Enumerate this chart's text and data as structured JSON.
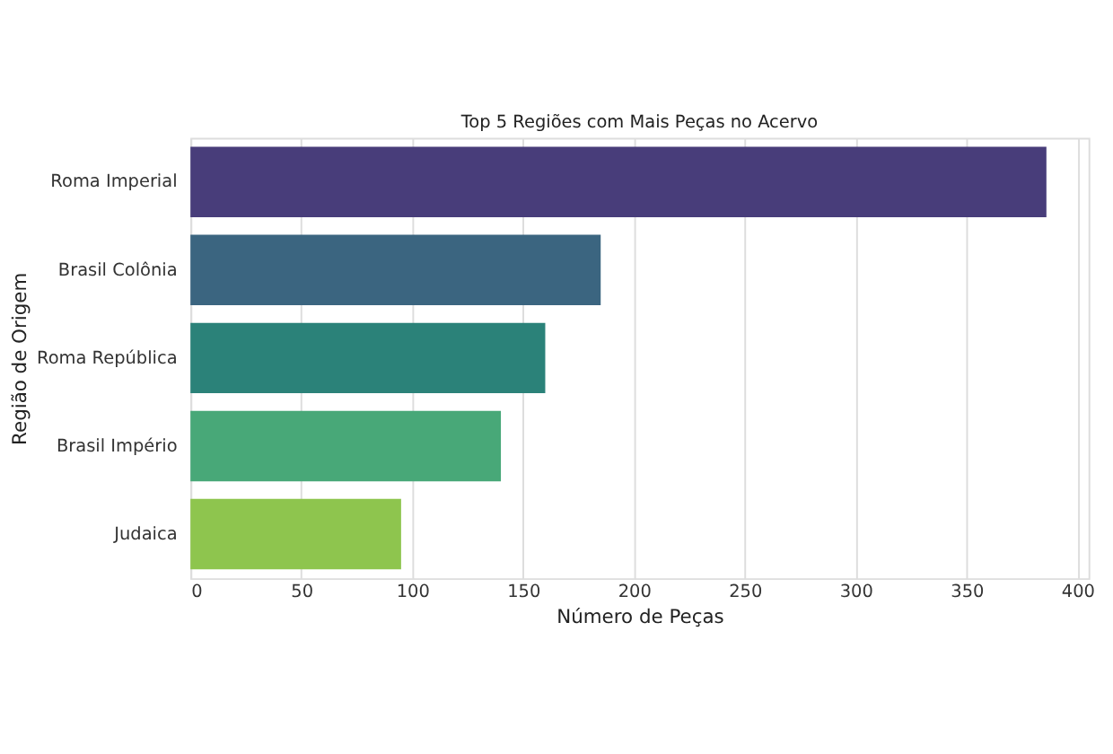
{
  "chart_data": {
    "type": "bar",
    "orientation": "horizontal",
    "title": "Top 5 Regiões com Mais Peças no Acervo",
    "xlabel": "Número de Peças",
    "ylabel": "Região de Origem",
    "categories": [
      "Roma Imperial",
      "Brasil Colônia",
      "Roma República",
      "Brasil Império",
      "Judaica"
    ],
    "values": [
      386,
      185,
      160,
      140,
      95
    ],
    "colors": [
      "#483d7a",
      "#3b6580",
      "#2b8279",
      "#48a878",
      "#8ec54e"
    ],
    "xlim": [
      0,
      405
    ],
    "xticks": [
      0,
      50,
      100,
      150,
      200,
      250,
      300,
      350,
      400
    ],
    "grid": "x"
  }
}
